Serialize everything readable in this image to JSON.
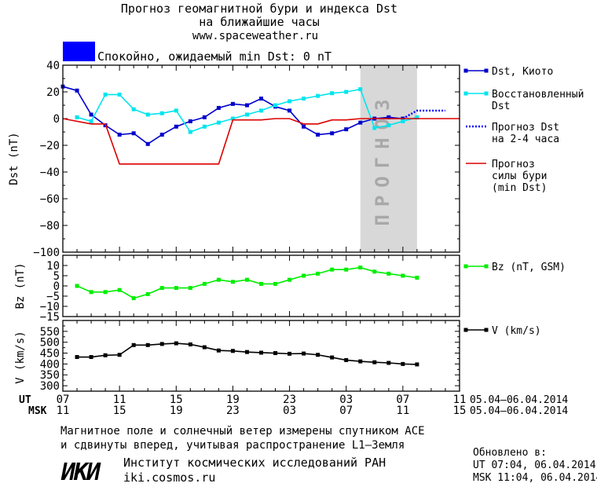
{
  "title_line1": "Прогноз геомагнитной бури и индекса Dst",
  "title_line2": "на ближайшие часы",
  "website": "www.spaceweather.ru",
  "status": {
    "text": "Спокойно, ожидаемый min Dst: 0 nT",
    "color": "#0000ff"
  },
  "forecast_watermark": "ПРОГНОЗ",
  "colors": {
    "kyoto": "#0000cc",
    "restored": "#00e5ee",
    "forecast_dst": "#0000ff",
    "storm": "#dd0000",
    "bz": "#00ee00",
    "v": "#000000",
    "forecast_band": "#d8d8d8"
  },
  "chart_data": [
    {
      "type": "line",
      "id": "dst",
      "ylabel": "Dst (nT)",
      "ylim": [
        -100,
        40
      ],
      "yticks": [
        40,
        20,
        0,
        -20,
        -40,
        -60,
        -80,
        -100
      ],
      "xlim": [
        7,
        35
      ],
      "forecast_region": [
        28,
        32
      ],
      "series": [
        {
          "name": "Dst, Киото",
          "legend_lines": [
            "Dst, Киото"
          ],
          "style": "line-square",
          "color": "#0000cc",
          "x": [
            7,
            8,
            9,
            10,
            11,
            12,
            13,
            14,
            15,
            16,
            17,
            18,
            19,
            20,
            21,
            22,
            23,
            24,
            25,
            26,
            27,
            28,
            29,
            30,
            31
          ],
          "y": [
            24,
            21,
            3,
            -5,
            -12,
            -11,
            -19,
            -12,
            -6,
            -2,
            1,
            8,
            11,
            10,
            15,
            9,
            6,
            -6,
            -12,
            -11,
            -8,
            -3,
            0,
            1,
            0
          ]
        },
        {
          "name": "Восстановленный Dst",
          "legend_lines": [
            "Восстановленный",
            "Dst"
          ],
          "style": "line-square",
          "color": "#00e5ee",
          "x": [
            8,
            9,
            10,
            11,
            12,
            13,
            14,
            15,
            16,
            17,
            18,
            19,
            20,
            21,
            22,
            23,
            24,
            25,
            26,
            27,
            28,
            29,
            30,
            31,
            32
          ],
          "y": [
            1,
            -2,
            18,
            18,
            7,
            3,
            4,
            6,
            -10,
            -6,
            -3,
            0,
            3,
            6,
            10,
            13,
            15,
            17,
            19,
            20,
            22,
            -7,
            -5,
            -2,
            1
          ]
        },
        {
          "name": "Прогноз Dst на 2-4 часа",
          "legend_lines": [
            "Прогноз Dst",
            "на 2-4 часа"
          ],
          "style": "dotted",
          "color": "#0000ff",
          "x": [
            31,
            31.5,
            32,
            33,
            34
          ],
          "y": [
            0,
            3,
            6,
            6,
            6
          ]
        },
        {
          "name": "Прогноз силы бури (min Dst)",
          "legend_lines": [
            "Прогноз",
            "силы бури",
            "(min Dst)"
          ],
          "style": "line",
          "color": "#dd0000",
          "x": [
            7,
            9,
            10,
            11,
            12,
            13,
            14,
            15,
            16,
            17,
            18,
            19,
            20,
            21,
            22,
            23,
            24,
            25,
            26,
            27,
            28,
            29,
            30,
            31,
            35
          ],
          "y": [
            0,
            -4,
            -4,
            -34,
            -34,
            -34,
            -34,
            -34,
            -34,
            -34,
            -34,
            -1,
            -1,
            -1,
            0,
            0,
            -4,
            -4,
            -1,
            -1,
            0,
            0,
            0,
            0,
            0
          ]
        }
      ]
    },
    {
      "type": "line",
      "id": "bz",
      "ylabel": "Bz (nT)",
      "ylim": [
        -15,
        15
      ],
      "yticks": [
        10,
        5,
        0,
        -5,
        -10,
        -15
      ],
      "ytick_labels": [
        "10",
        "5",
        "0",
        "−5",
        "−10",
        "−15"
      ],
      "xlim": [
        7,
        35
      ],
      "series": [
        {
          "name": "Bz (nT, GSM)",
          "style": "line-square",
          "color": "#00ee00",
          "x": [
            8,
            9,
            10,
            11,
            12,
            13,
            14,
            15,
            16,
            17,
            18,
            19,
            20,
            21,
            22,
            23,
            24,
            25,
            26,
            27,
            28,
            29,
            30,
            31,
            32
          ],
          "y": [
            0,
            -3,
            -3,
            -2,
            -6,
            -4,
            -1,
            -1,
            -1,
            1,
            3,
            2,
            3,
            1,
            1,
            3,
            5,
            6,
            8,
            8,
            9,
            7,
            6,
            5,
            4
          ]
        }
      ]
    },
    {
      "type": "line",
      "id": "v",
      "ylabel": "V (km/s)",
      "ylim": [
        275,
        600
      ],
      "yticks": [
        550,
        500,
        450,
        400,
        350,
        300
      ],
      "yticks_minor": [
        575,
        525,
        475,
        425,
        375,
        325
      ],
      "xlim": [
        7,
        35
      ],
      "series": [
        {
          "name": "V (km/s)",
          "style": "line-square",
          "color": "#000000",
          "x": [
            8,
            9,
            10,
            11,
            12,
            13,
            14,
            15,
            16,
            17,
            18,
            19,
            20,
            21,
            22,
            23,
            24,
            25,
            26,
            27,
            28,
            29,
            30,
            31,
            32
          ],
          "y": [
            432,
            432,
            440,
            442,
            487,
            487,
            492,
            495,
            490,
            477,
            462,
            460,
            455,
            452,
            450,
            447,
            448,
            442,
            430,
            418,
            412,
            408,
            405,
            400,
            398
          ]
        }
      ]
    }
  ],
  "x_axis": {
    "ut_label": "UT",
    "msk_label": "MSK",
    "ut_ticks": [
      "07",
      "11",
      "15",
      "19",
      "23",
      "03",
      "07",
      "11"
    ],
    "msk_ticks": [
      "11",
      "15",
      "19",
      "23",
      "03",
      "07",
      "11",
      "15"
    ],
    "tick_positions": [
      7,
      11,
      15,
      19,
      23,
      27,
      31,
      35
    ],
    "ut_range": "05.04–06.04.2014",
    "msk_range": "05.04–06.04.2014"
  },
  "footer": {
    "note_line1": "Магнитное поле и солнечный ветер измерены спутником ACE",
    "note_line2": "и сдвинуты вперед, учитывая распространение L1–Земля",
    "logo": "ИКИ",
    "institute": "Институт космических исследований РАН",
    "institute_url": "iki.cosmos.ru",
    "updated_label": "Обновлено в:",
    "updated_ut": "UT  07:04, 06.04.2014",
    "updated_msk": "MSK 11:04, 06.04.2014"
  }
}
